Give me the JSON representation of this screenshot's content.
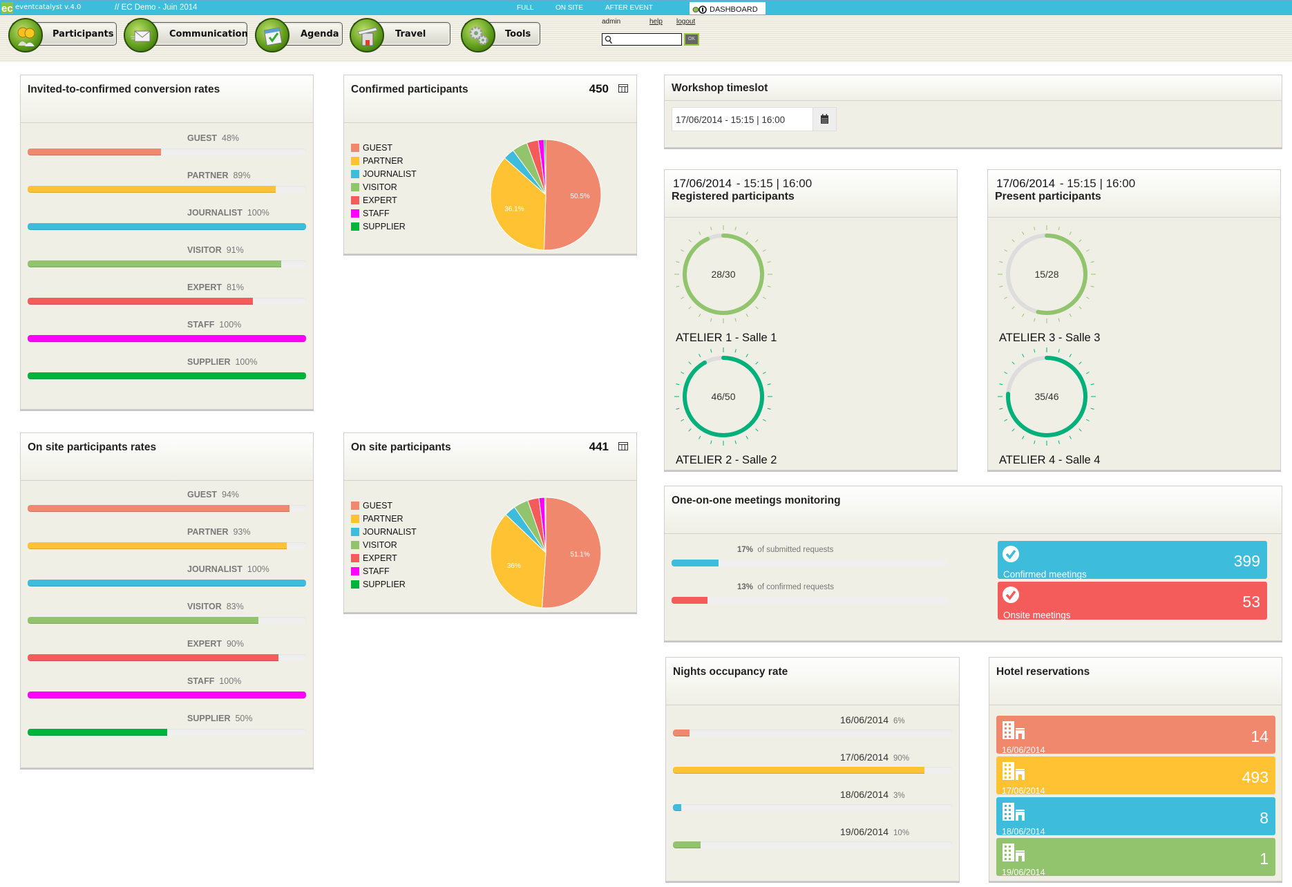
{
  "topbar": {
    "brand": "eventcatalyst v.4.0",
    "event": "//  EC Demo - Juin 2014",
    "modes": [
      "FULL",
      "ON SITE",
      "AFTER EVENT"
    ],
    "dashboard_label": "DASHBOARD",
    "color": "#3dbcdc"
  },
  "nav": {
    "buttons": [
      {
        "label": "Participants",
        "icon": "participants-icon"
      },
      {
        "label": "Communication",
        "icon": "envelope-icon"
      },
      {
        "label": "Agenda",
        "icon": "calendar-icon"
      },
      {
        "label": "Travel",
        "icon": "hotel-plane-icon"
      },
      {
        "label": "Tools",
        "icon": "gears-icon"
      }
    ],
    "user": "admin",
    "help": "help",
    "logout": "logout",
    "search_value": "",
    "ok_label": "OK"
  },
  "colors": {
    "guest": "#f0886e",
    "partner": "#ffc233",
    "journalist": "#3dbcdc",
    "visitor": "#91c46c",
    "expert": "#f45b5b",
    "staff": "#ff00ff",
    "supplier": "#00b33c",
    "gauge_light": "#91c46c",
    "gauge_dark": "#00b07a",
    "gauge_empty": "#dddddd"
  },
  "conversion": {
    "title": "Invited-to-confirmed conversion rates",
    "rows": [
      {
        "label": "GUEST",
        "pct_text": "48%",
        "value": 48,
        "color": "#f0886e"
      },
      {
        "label": "PARTNER",
        "pct_text": "89%",
        "value": 89,
        "color": "#ffc233"
      },
      {
        "label": "JOURNALIST",
        "pct_text": "100%",
        "value": 100,
        "color": "#3dbcdc"
      },
      {
        "label": "VISITOR",
        "pct_text": "91%",
        "value": 91,
        "color": "#91c46c"
      },
      {
        "label": "EXPERT",
        "pct_text": "81%",
        "value": 81,
        "color": "#f45b5b"
      },
      {
        "label": "STAFF",
        "pct_text": "100%",
        "value": 100,
        "color": "#ff00ff"
      },
      {
        "label": "SUPPLIER",
        "pct_text": "100%",
        "value": 100,
        "color": "#00b33c"
      }
    ]
  },
  "onsite_rates": {
    "title": "On site participants rates",
    "rows": [
      {
        "label": "GUEST",
        "pct_text": "94%",
        "value": 94,
        "color": "#f0886e"
      },
      {
        "label": "PARTNER",
        "pct_text": "93%",
        "value": 93,
        "color": "#ffc233"
      },
      {
        "label": "JOURNALIST",
        "pct_text": "100%",
        "value": 100,
        "color": "#3dbcdc"
      },
      {
        "label": "VISITOR",
        "pct_text": "83%",
        "value": 83,
        "color": "#91c46c"
      },
      {
        "label": "EXPERT",
        "pct_text": "90%",
        "value": 90,
        "color": "#f45b5b"
      },
      {
        "label": "STAFF",
        "pct_text": "100%",
        "value": 100,
        "color": "#ff00ff"
      },
      {
        "label": "SUPPLIER",
        "pct_text": "50%",
        "value": 50,
        "color": "#00b33c"
      }
    ]
  },
  "chart_data": [
    {
      "type": "pie",
      "title": "Confirmed participants",
      "total": "450",
      "categories": [
        "GUEST",
        "PARTNER",
        "JOURNALIST",
        "VISITOR",
        "EXPERT",
        "STAFF",
        "SUPPLIER"
      ],
      "values": [
        50.5,
        36.1,
        3.3,
        4.5,
        3.4,
        1.7,
        0.5
      ],
      "colors": [
        "#f0886e",
        "#ffc233",
        "#3dbcdc",
        "#91c46c",
        "#f45b5b",
        "#ff00ff",
        "#00b33c"
      ],
      "data_labels": [
        "50.5%",
        "36.1%",
        "",
        "",
        "",
        "",
        ""
      ],
      "legend": "left"
    },
    {
      "type": "pie",
      "title": "On site participants",
      "total": "441",
      "categories": [
        "GUEST",
        "PARTNER",
        "JOURNALIST",
        "VISITOR",
        "EXPERT",
        "STAFF",
        "SUPPLIER"
      ],
      "values": [
        51.1,
        36.0,
        3.3,
        4.3,
        3.3,
        1.7,
        0.3
      ],
      "colors": [
        "#f0886e",
        "#ffc233",
        "#3dbcdc",
        "#91c46c",
        "#f45b5b",
        "#ff00ff",
        "#00b33c"
      ],
      "data_labels": [
        "51.1%",
        "36%",
        "",
        "",
        "",
        "",
        ""
      ],
      "legend": "left"
    }
  ],
  "workshop": {
    "title": "Workshop timeslot",
    "value": "17/06/2014 - 15:15 | 16:00"
  },
  "registered": {
    "date": "17/06/2014",
    "time": " - 15:15 | 16:00",
    "title": "Registered participants",
    "gauges": [
      {
        "value": 28,
        "max": 30,
        "text": "28/30",
        "label": "ATELIER 1 - Salle 1",
        "color": "#91c46c"
      },
      {
        "value": 46,
        "max": 50,
        "text": "46/50",
        "label": "ATELIER 2 - Salle 2",
        "color": "#00b07a"
      }
    ]
  },
  "present": {
    "date": "17/06/2014",
    "time": " - 15:15 | 16:00",
    "title": "Present participants",
    "gauges": [
      {
        "value": 15,
        "max": 28,
        "text": "15/28",
        "label": "ATELIER 3 - Salle 3",
        "color": "#91c46c"
      },
      {
        "value": 35,
        "max": 46,
        "text": "35/46",
        "label": "ATELIER 4 - Salle 4",
        "color": "#00b07a"
      }
    ]
  },
  "meetings": {
    "title": "One-on-one meetings monitoring",
    "bars": [
      {
        "pct_text": "17%",
        "text": "of submitted requests",
        "value": 17,
        "color": "#3dbcdc"
      },
      {
        "pct_text": "13%",
        "text": "of confirmed requests",
        "value": 13,
        "color": "#f45b5b"
      }
    ],
    "tiles": [
      {
        "label": "Confirmed meetings",
        "value": "399",
        "color": "#3dbcdc"
      },
      {
        "label": "Onsite meetings",
        "value": "53",
        "color": "#f45b5b"
      }
    ]
  },
  "nights": {
    "title": "Nights occupancy rate",
    "rows": [
      {
        "date": "16/06/2014",
        "pct_text": "6%",
        "value": 6,
        "color": "#f0886e"
      },
      {
        "date": "17/06/2014",
        "pct_text": "90%",
        "value": 90,
        "color": "#ffc233"
      },
      {
        "date": "18/06/2014",
        "pct_text": "3%",
        "value": 3,
        "color": "#3dbcdc"
      },
      {
        "date": "19/06/2014",
        "pct_text": "10%",
        "value": 10,
        "color": "#91c46c"
      }
    ]
  },
  "hotel": {
    "title": "Hotel reservations",
    "tiles": [
      {
        "date": "16/06/2014",
        "value": "14",
        "color": "#f0886e"
      },
      {
        "date": "17/06/2014",
        "value": "493",
        "color": "#ffc233"
      },
      {
        "date": "18/06/2014",
        "value": "8",
        "color": "#3dbcdc"
      },
      {
        "date": "19/06/2014",
        "value": "1",
        "color": "#91c46c"
      }
    ]
  }
}
